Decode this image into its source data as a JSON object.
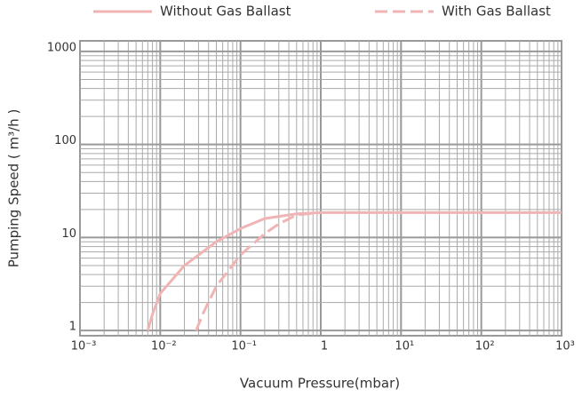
{
  "chart_data": {
    "type": "line",
    "xlabel": "Vacuum Pressure(mbar)",
    "ylabel": "Pumping Speed ( m³/h )",
    "xlog": true,
    "ylog": true,
    "grid": true,
    "legend": "top",
    "xlim": [
      0.001,
      1000
    ],
    "xticks": [
      {
        "value": 0.001,
        "label": "10⁻³"
      },
      {
        "value": 0.01,
        "label": "10⁻²"
      },
      {
        "value": 0.1,
        "label": "10⁻¹"
      },
      1,
      {
        "value": 10,
        "label": "10¹"
      },
      {
        "value": 100,
        "label": "10²"
      },
      {
        "value": 1000,
        "label": "10³"
      }
    ],
    "ylim": [
      0.88,
      1300
    ],
    "yticks": [
      1,
      10,
      100,
      1000
    ],
    "series": [
      {
        "name": "Without Gas Ballast",
        "color": "#f0b4b4",
        "style": "solid",
        "x": [
          0.007,
          0.008,
          0.01,
          0.02,
          0.05,
          0.1,
          0.2,
          0.5,
          1,
          10,
          100,
          1000
        ],
        "values": [
          1,
          1.5,
          2.5,
          5,
          9,
          12.5,
          16,
          18,
          18.5,
          18.5,
          18.5,
          18.5
        ]
      },
      {
        "name": "With Gas Ballast",
        "color": "#f0b4b4",
        "style": "dashed",
        "x": [
          0.028,
          0.035,
          0.05,
          0.1,
          0.2,
          0.3,
          0.5,
          1
        ],
        "values": [
          1,
          1.6,
          3,
          6.5,
          11,
          14,
          17.5,
          18.5
        ]
      }
    ]
  }
}
